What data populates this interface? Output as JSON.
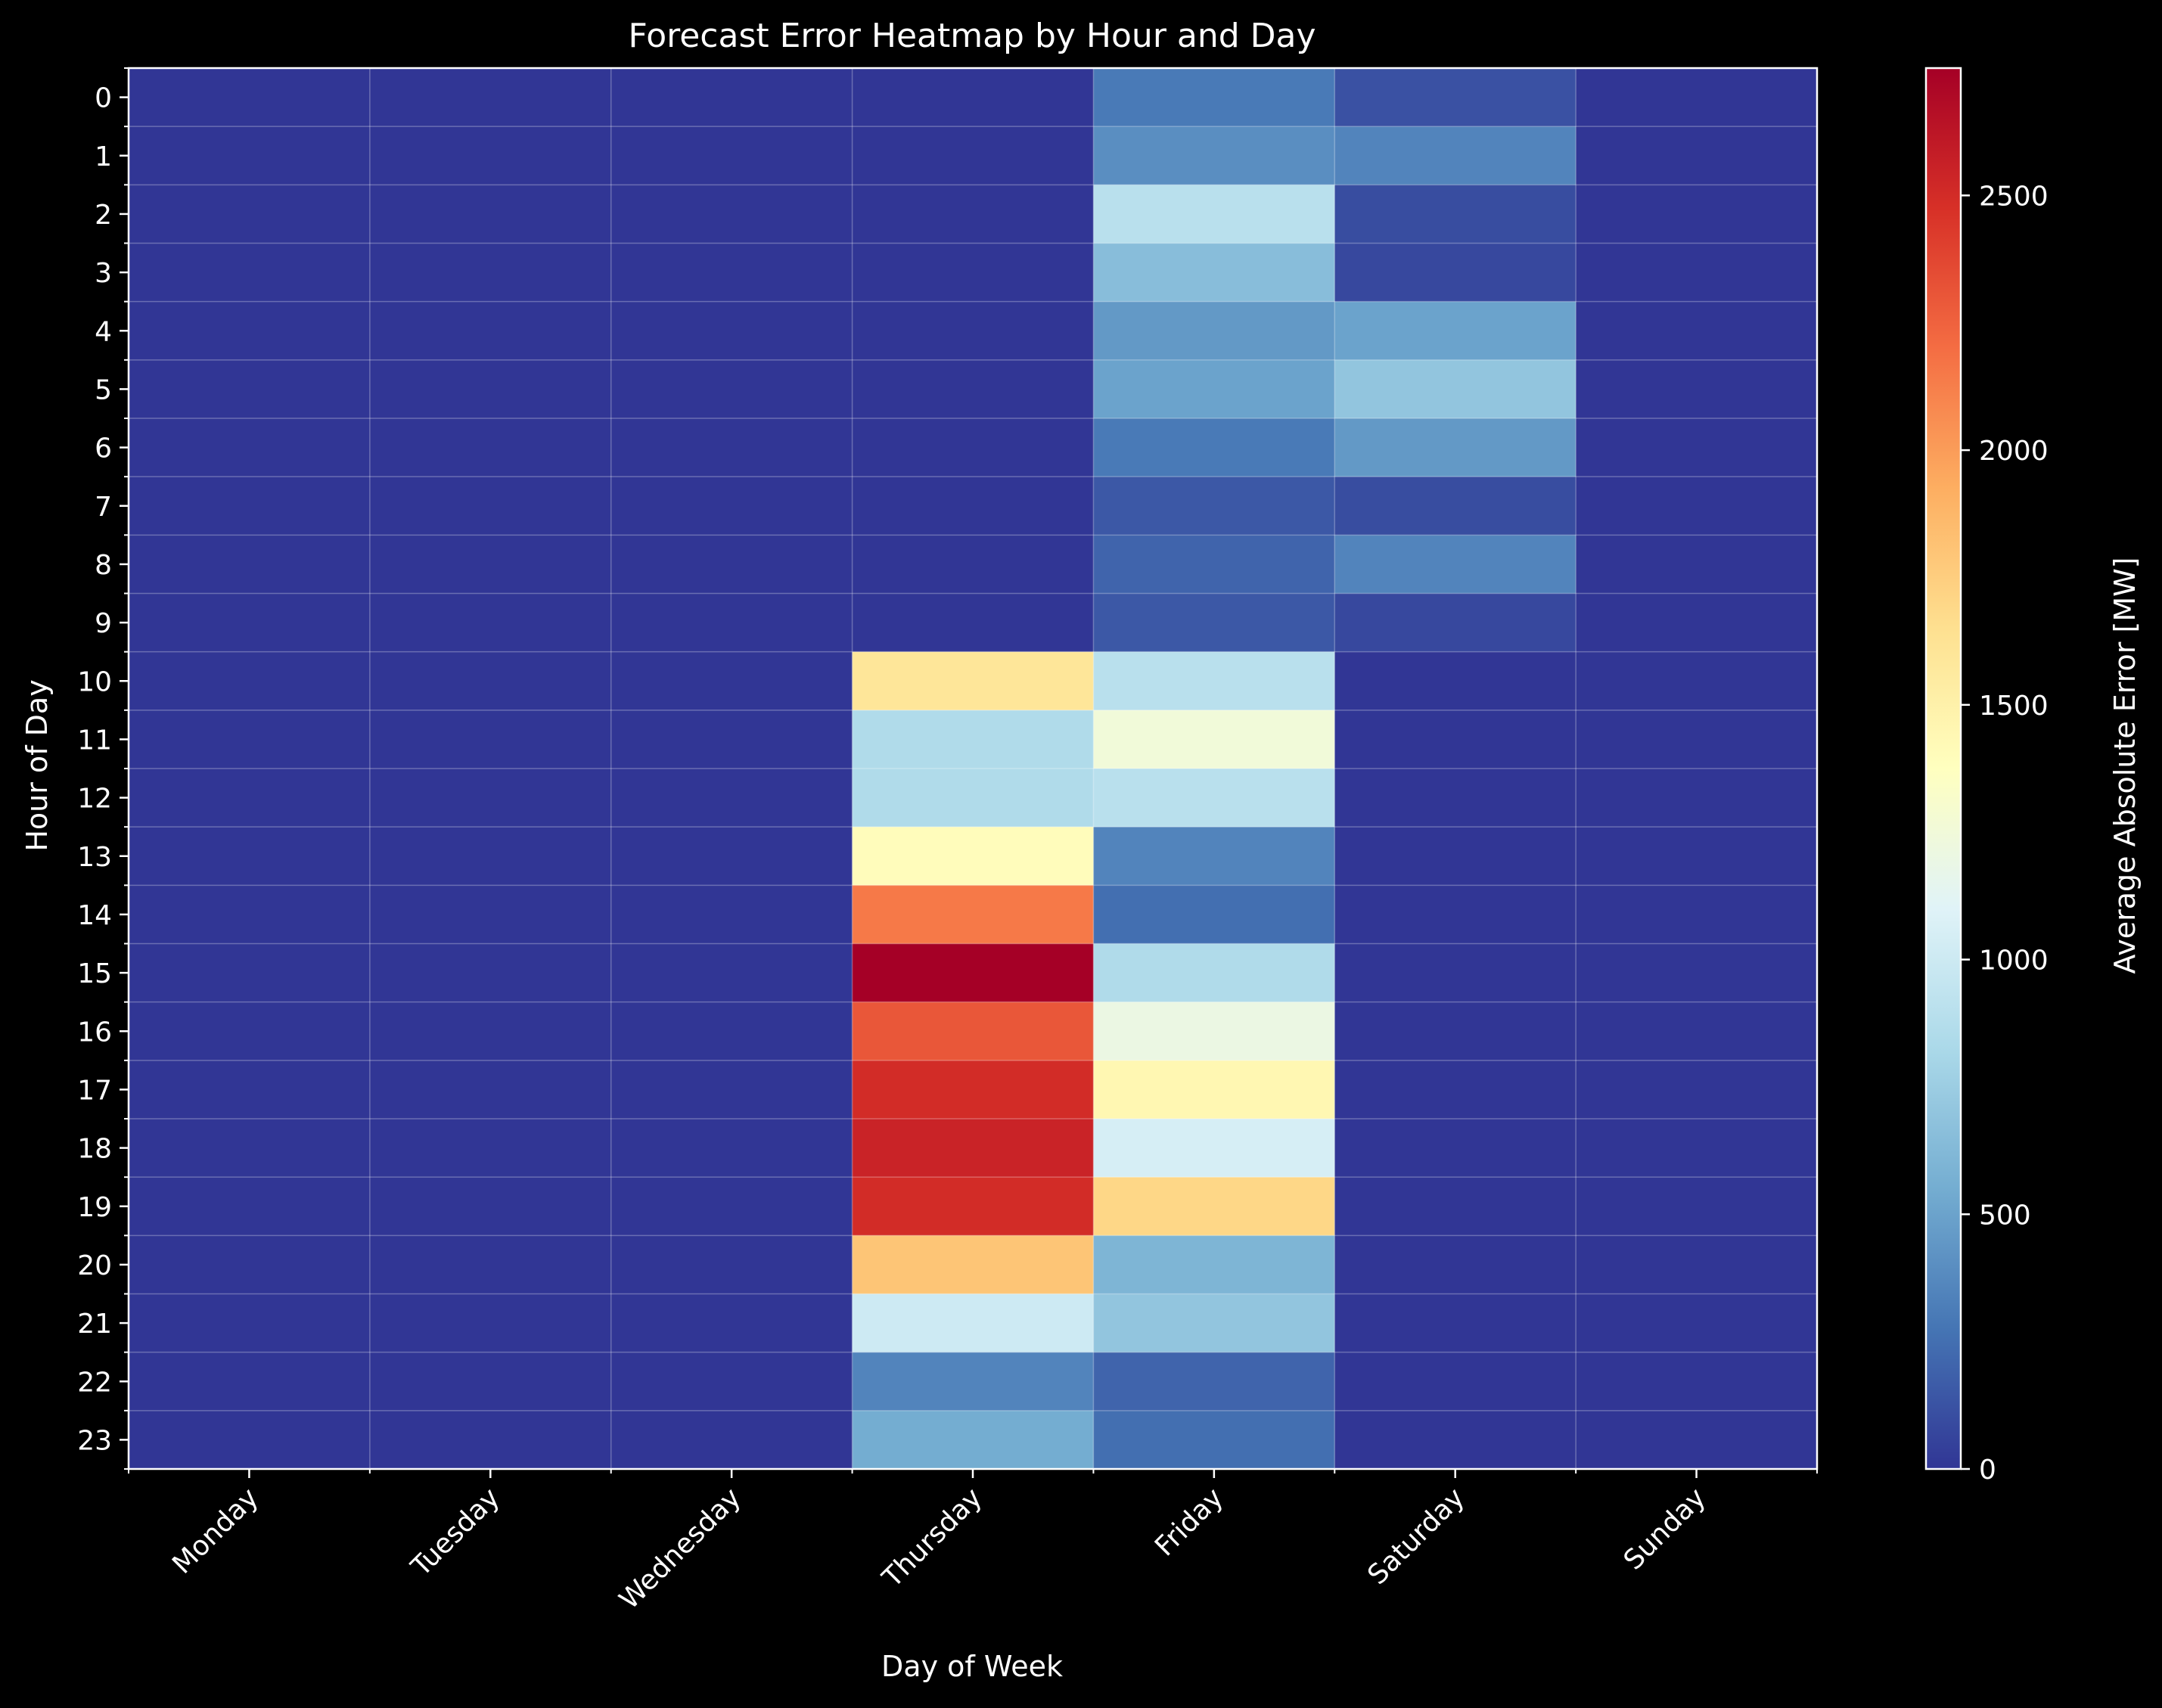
{
  "chart_data": {
    "type": "heatmap",
    "title": "Forecast Error Heatmap by Hour and Day",
    "xlabel": "Day of Week",
    "ylabel": "Hour of Day",
    "x_categories": [
      "Monday",
      "Tuesday",
      "Wednesday",
      "Thursday",
      "Friday",
      "Saturday",
      "Sunday"
    ],
    "y_categories": [
      "0",
      "1",
      "2",
      "3",
      "4",
      "5",
      "6",
      "7",
      "8",
      "9",
      "10",
      "11",
      "12",
      "13",
      "14",
      "15",
      "16",
      "17",
      "18",
      "19",
      "20",
      "21",
      "22",
      "23"
    ],
    "values": [
      [
        0,
        0,
        0,
        0,
        300,
        120,
        0
      ],
      [
        0,
        0,
        0,
        0,
        400,
        350,
        0
      ],
      [
        0,
        0,
        0,
        0,
        900,
        100,
        0
      ],
      [
        0,
        0,
        0,
        0,
        650,
        80,
        0
      ],
      [
        0,
        0,
        0,
        0,
        450,
        500,
        0
      ],
      [
        0,
        0,
        0,
        0,
        500,
        700,
        0
      ],
      [
        0,
        0,
        0,
        0,
        300,
        450,
        0
      ],
      [
        0,
        0,
        0,
        0,
        150,
        100,
        0
      ],
      [
        0,
        0,
        0,
        0,
        200,
        350,
        0
      ],
      [
        0,
        0,
        0,
        0,
        150,
        80,
        0
      ],
      [
        0,
        0,
        0,
        1600,
        900,
        0,
        0
      ],
      [
        0,
        0,
        0,
        850,
        1250,
        0,
        0
      ],
      [
        0,
        0,
        0,
        850,
        900,
        0,
        0
      ],
      [
        0,
        0,
        0,
        1400,
        350,
        0,
        0
      ],
      [
        0,
        0,
        0,
        2150,
        250,
        0,
        0
      ],
      [
        0,
        0,
        0,
        2750,
        850,
        0,
        0
      ],
      [
        0,
        0,
        0,
        2300,
        1200,
        0,
        0
      ],
      [
        0,
        0,
        0,
        2500,
        1450,
        0,
        0
      ],
      [
        0,
        0,
        0,
        2550,
        1050,
        0,
        0
      ],
      [
        0,
        0,
        0,
        2500,
        1700,
        0,
        0
      ],
      [
        0,
        0,
        0,
        1800,
        600,
        0,
        0
      ],
      [
        0,
        0,
        0,
        1000,
        700,
        0,
        0
      ],
      [
        0,
        0,
        0,
        350,
        200,
        0,
        0
      ],
      [
        0,
        0,
        0,
        550,
        250,
        0,
        0
      ]
    ],
    "colorbar": {
      "label": "Average Absolute Error [MW]",
      "min": 0,
      "max": 2750,
      "ticks": [
        "0",
        "500",
        "1000",
        "1500",
        "2000",
        "2500"
      ],
      "colormap": "RdYlBu_r"
    },
    "grid": true
  }
}
